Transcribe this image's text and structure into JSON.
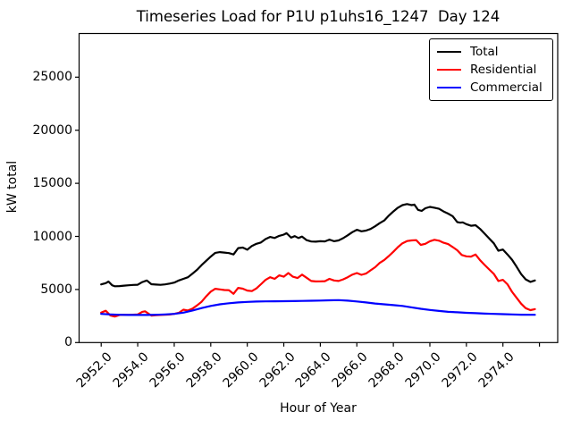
{
  "chart_data": {
    "type": "line",
    "title": "Timeseries Load for P1U p1uhs16_1247  Day 124",
    "xlabel": "Hour of Year",
    "ylabel": "kW total",
    "xlim": [
      2950.79,
      2977.0
    ],
    "ylim": [
      0,
      29110
    ],
    "x_tick_values": [
      2952,
      2954,
      2956,
      2958,
      2960,
      2962,
      2964,
      2966,
      2968,
      2970,
      2972,
      2974
    ],
    "x_tick_labels": [
      "2952.0",
      "2954.0",
      "2956.0",
      "2958.0",
      "2960.0",
      "2962.0",
      "2964.0",
      "2966.0",
      "2968.0",
      "2970.0",
      "2972.0",
      "2974.0"
    ],
    "x_tick_extra_unlabeled": [
      2976
    ],
    "y_tick_values": [
      0,
      5000,
      10000,
      15000,
      20000,
      25000
    ],
    "y_tick_labels": [
      "0",
      "5000",
      "10000",
      "15000",
      "20000",
      "25000"
    ],
    "grid": false,
    "legend_position": "upper right",
    "axis_color": "#000000",
    "background": "#ffffff",
    "series": [
      {
        "name": "Total",
        "color": "#000000",
        "points": [
          [
            2952.0,
            5480
          ],
          [
            2952.25,
            5600
          ],
          [
            2952.4,
            5750
          ],
          [
            2952.6,
            5400
          ],
          [
            2952.75,
            5300
          ],
          [
            2953.0,
            5320
          ],
          [
            2953.25,
            5360
          ],
          [
            2953.5,
            5400
          ],
          [
            2953.75,
            5430
          ],
          [
            2954.0,
            5450
          ],
          [
            2954.25,
            5700
          ],
          [
            2954.5,
            5850
          ],
          [
            2954.75,
            5500
          ],
          [
            2955.0,
            5460
          ],
          [
            2955.25,
            5440
          ],
          [
            2955.5,
            5480
          ],
          [
            2955.75,
            5560
          ],
          [
            2956.0,
            5650
          ],
          [
            2956.25,
            5850
          ],
          [
            2956.5,
            6000
          ],
          [
            2956.75,
            6150
          ],
          [
            2957.0,
            6500
          ],
          [
            2957.25,
            6850
          ],
          [
            2957.5,
            7300
          ],
          [
            2957.75,
            7700
          ],
          [
            2958.0,
            8100
          ],
          [
            2958.25,
            8450
          ],
          [
            2958.5,
            8520
          ],
          [
            2958.75,
            8480
          ],
          [
            2959.0,
            8430
          ],
          [
            2959.25,
            8300
          ],
          [
            2959.5,
            8900
          ],
          [
            2959.75,
            8950
          ],
          [
            2960.0,
            8750
          ],
          [
            2960.25,
            9100
          ],
          [
            2960.5,
            9300
          ],
          [
            2960.75,
            9430
          ],
          [
            2961.0,
            9750
          ],
          [
            2961.25,
            9950
          ],
          [
            2961.5,
            9850
          ],
          [
            2961.75,
            10050
          ],
          [
            2962.0,
            10170
          ],
          [
            2962.15,
            10300
          ],
          [
            2962.4,
            9880
          ],
          [
            2962.6,
            10030
          ],
          [
            2962.8,
            9850
          ],
          [
            2963.0,
            9980
          ],
          [
            2963.25,
            9650
          ],
          [
            2963.5,
            9520
          ],
          [
            2963.75,
            9500
          ],
          [
            2964.0,
            9550
          ],
          [
            2964.25,
            9530
          ],
          [
            2964.5,
            9700
          ],
          [
            2964.75,
            9550
          ],
          [
            2965.0,
            9620
          ],
          [
            2965.25,
            9830
          ],
          [
            2965.5,
            10100
          ],
          [
            2965.75,
            10400
          ],
          [
            2966.0,
            10620
          ],
          [
            2966.25,
            10480
          ],
          [
            2966.5,
            10550
          ],
          [
            2966.75,
            10700
          ],
          [
            2967.0,
            10950
          ],
          [
            2967.25,
            11250
          ],
          [
            2967.5,
            11500
          ],
          [
            2967.75,
            11950
          ],
          [
            2968.0,
            12350
          ],
          [
            2968.25,
            12700
          ],
          [
            2968.5,
            12950
          ],
          [
            2968.75,
            13050
          ],
          [
            2969.0,
            12950
          ],
          [
            2969.15,
            13000
          ],
          [
            2969.35,
            12500
          ],
          [
            2969.55,
            12400
          ],
          [
            2969.75,
            12650
          ],
          [
            2970.0,
            12780
          ],
          [
            2970.25,
            12700
          ],
          [
            2970.5,
            12600
          ],
          [
            2970.75,
            12350
          ],
          [
            2971.0,
            12150
          ],
          [
            2971.25,
            11900
          ],
          [
            2971.5,
            11350
          ],
          [
            2971.65,
            11300
          ],
          [
            2971.8,
            11320
          ],
          [
            2972.0,
            11150
          ],
          [
            2972.25,
            11000
          ],
          [
            2972.5,
            11050
          ],
          [
            2972.75,
            10700
          ],
          [
            2973.0,
            10250
          ],
          [
            2973.25,
            9800
          ],
          [
            2973.5,
            9350
          ],
          [
            2973.75,
            8650
          ],
          [
            2974.0,
            8760
          ],
          [
            2974.25,
            8300
          ],
          [
            2974.5,
            7800
          ],
          [
            2974.75,
            7150
          ],
          [
            2975.0,
            6450
          ],
          [
            2975.25,
            5950
          ],
          [
            2975.5,
            5720
          ],
          [
            2975.75,
            5850
          ]
        ]
      },
      {
        "name": "Residential",
        "color": "#ff0000",
        "points": [
          [
            2952.0,
            2820
          ],
          [
            2952.25,
            3000
          ],
          [
            2952.5,
            2560
          ],
          [
            2952.75,
            2450
          ],
          [
            2953.0,
            2600
          ],
          [
            2953.25,
            2620
          ],
          [
            2953.5,
            2600
          ],
          [
            2953.75,
            2630
          ],
          [
            2954.0,
            2650
          ],
          [
            2954.25,
            2900
          ],
          [
            2954.4,
            2950
          ],
          [
            2954.75,
            2540
          ],
          [
            2955.0,
            2580
          ],
          [
            2955.25,
            2600
          ],
          [
            2955.5,
            2620
          ],
          [
            2955.75,
            2640
          ],
          [
            2956.0,
            2700
          ],
          [
            2956.25,
            2800
          ],
          [
            2956.5,
            3100
          ],
          [
            2956.75,
            3020
          ],
          [
            2957.0,
            3200
          ],
          [
            2957.25,
            3500
          ],
          [
            2957.5,
            3850
          ],
          [
            2957.75,
            4350
          ],
          [
            2958.0,
            4800
          ],
          [
            2958.25,
            5070
          ],
          [
            2958.5,
            5010
          ],
          [
            2958.75,
            4950
          ],
          [
            2959.0,
            4930
          ],
          [
            2959.25,
            4600
          ],
          [
            2959.5,
            5150
          ],
          [
            2959.75,
            5080
          ],
          [
            2960.0,
            4900
          ],
          [
            2960.25,
            4850
          ],
          [
            2960.5,
            5100
          ],
          [
            2960.75,
            5500
          ],
          [
            2961.0,
            5900
          ],
          [
            2961.25,
            6150
          ],
          [
            2961.5,
            6000
          ],
          [
            2961.75,
            6330
          ],
          [
            2962.0,
            6200
          ],
          [
            2962.25,
            6550
          ],
          [
            2962.5,
            6200
          ],
          [
            2962.75,
            6080
          ],
          [
            2963.0,
            6400
          ],
          [
            2963.25,
            6100
          ],
          [
            2963.5,
            5800
          ],
          [
            2963.75,
            5760
          ],
          [
            2964.0,
            5770
          ],
          [
            2964.25,
            5780
          ],
          [
            2964.5,
            6000
          ],
          [
            2964.75,
            5850
          ],
          [
            2965.0,
            5800
          ],
          [
            2965.25,
            5950
          ],
          [
            2965.5,
            6150
          ],
          [
            2965.75,
            6400
          ],
          [
            2966.0,
            6550
          ],
          [
            2966.25,
            6380
          ],
          [
            2966.5,
            6500
          ],
          [
            2966.75,
            6800
          ],
          [
            2967.0,
            7100
          ],
          [
            2967.25,
            7500
          ],
          [
            2967.5,
            7780
          ],
          [
            2967.75,
            8150
          ],
          [
            2968.0,
            8550
          ],
          [
            2968.25,
            8990
          ],
          [
            2968.5,
            9350
          ],
          [
            2968.75,
            9560
          ],
          [
            2969.0,
            9620
          ],
          [
            2969.25,
            9650
          ],
          [
            2969.5,
            9200
          ],
          [
            2969.75,
            9300
          ],
          [
            2970.0,
            9550
          ],
          [
            2970.25,
            9680
          ],
          [
            2970.5,
            9600
          ],
          [
            2970.75,
            9400
          ],
          [
            2971.0,
            9280
          ],
          [
            2971.25,
            9000
          ],
          [
            2971.5,
            8700
          ],
          [
            2971.75,
            8250
          ],
          [
            2972.0,
            8120
          ],
          [
            2972.25,
            8100
          ],
          [
            2972.5,
            8290
          ],
          [
            2972.75,
            7750
          ],
          [
            2973.0,
            7310
          ],
          [
            2973.25,
            6890
          ],
          [
            2973.5,
            6470
          ],
          [
            2973.75,
            5800
          ],
          [
            2974.0,
            5910
          ],
          [
            2974.25,
            5490
          ],
          [
            2974.5,
            4780
          ],
          [
            2974.75,
            4220
          ],
          [
            2975.0,
            3660
          ],
          [
            2975.25,
            3240
          ],
          [
            2975.5,
            3060
          ],
          [
            2975.75,
            3150
          ]
        ]
      },
      {
        "name": "Commercial",
        "color": "#0000ff",
        "points": [
          [
            2952.0,
            2700
          ],
          [
            2952.5,
            2650
          ],
          [
            2953.0,
            2620
          ],
          [
            2953.5,
            2600
          ],
          [
            2954.0,
            2600
          ],
          [
            2954.5,
            2600
          ],
          [
            2955.0,
            2620
          ],
          [
            2955.5,
            2650
          ],
          [
            2956.0,
            2700
          ],
          [
            2956.5,
            2820
          ],
          [
            2957.0,
            3020
          ],
          [
            2957.5,
            3250
          ],
          [
            2958.0,
            3450
          ],
          [
            2958.5,
            3600
          ],
          [
            2959.0,
            3700
          ],
          [
            2959.5,
            3780
          ],
          [
            2960.0,
            3830
          ],
          [
            2960.5,
            3860
          ],
          [
            2961.0,
            3880
          ],
          [
            2961.5,
            3890
          ],
          [
            2962.0,
            3900
          ],
          [
            2962.5,
            3910
          ],
          [
            2963.0,
            3920
          ],
          [
            2963.5,
            3940
          ],
          [
            2964.0,
            3960
          ],
          [
            2964.5,
            3980
          ],
          [
            2965.0,
            4000
          ],
          [
            2965.5,
            3950
          ],
          [
            2966.0,
            3870
          ],
          [
            2966.5,
            3780
          ],
          [
            2967.0,
            3680
          ],
          [
            2967.5,
            3600
          ],
          [
            2968.0,
            3530
          ],
          [
            2968.5,
            3450
          ],
          [
            2969.0,
            3320
          ],
          [
            2969.5,
            3180
          ],
          [
            2970.0,
            3070
          ],
          [
            2970.5,
            2980
          ],
          [
            2971.0,
            2900
          ],
          [
            2971.5,
            2850
          ],
          [
            2972.0,
            2800
          ],
          [
            2972.5,
            2770
          ],
          [
            2973.0,
            2730
          ],
          [
            2973.5,
            2700
          ],
          [
            2974.0,
            2680
          ],
          [
            2974.5,
            2650
          ],
          [
            2975.0,
            2630
          ],
          [
            2975.5,
            2620
          ],
          [
            2975.75,
            2620
          ]
        ]
      }
    ]
  }
}
